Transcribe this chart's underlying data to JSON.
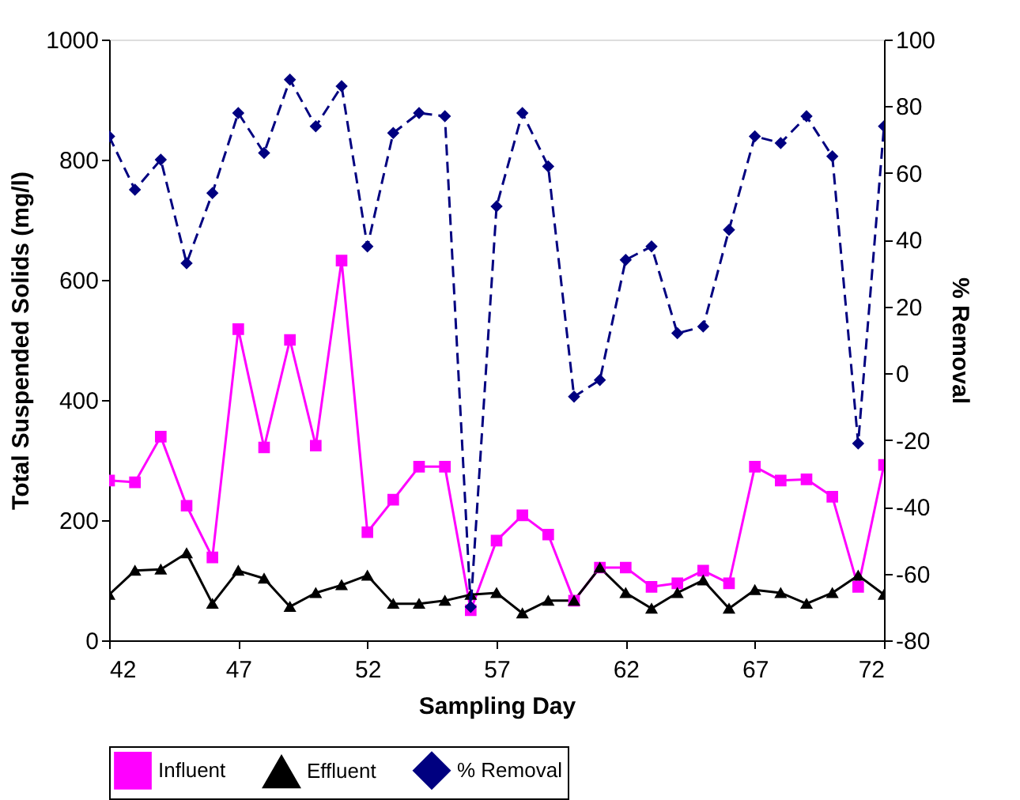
{
  "chart_data": {
    "type": "line",
    "xlabel": "Sampling Day",
    "ylabel": "Total Suspended Solids (mg/l)",
    "y2label": "% Removal",
    "x": [
      42,
      43,
      44,
      45,
      46,
      47,
      48,
      49,
      50,
      51,
      52,
      53,
      54,
      55,
      56,
      57,
      58,
      59,
      60,
      61,
      62,
      63,
      64,
      65,
      66,
      67,
      68,
      69,
      70,
      71,
      72
    ],
    "xlim": [
      42,
      72
    ],
    "xticks": [
      42,
      47,
      52,
      57,
      62,
      67,
      72
    ],
    "ylim": [
      0,
      1000
    ],
    "yticks": [
      0,
      200,
      400,
      600,
      800,
      1000
    ],
    "y2lim": [
      -80,
      100
    ],
    "y2ticks": [
      -80,
      -60,
      -40,
      -20,
      0,
      20,
      40,
      60,
      80,
      100
    ],
    "grid": false,
    "legend": "bottom",
    "series": [
      {
        "name": "Influent",
        "color": "#ff00ff",
        "marker": "square",
        "line_style": "solid",
        "values": [
          266,
          263,
          339,
          224,
          138,
          518,
          321,
          500,
          324,
          632,
          180,
          234,
          289,
          289,
          50,
          166,
          208,
          176,
          66,
          121,
          121,
          89,
          95,
          116,
          95,
          289,
          266,
          268,
          239,
          89,
          292
        ]
      },
      {
        "name": "Effluent",
        "color": "#000000",
        "marker": "triangle",
        "line_style": "solid",
        "values": [
          76,
          116,
          118,
          145,
          61,
          116,
          103,
          56,
          79,
          92,
          108,
          61,
          61,
          66,
          76,
          79,
          45,
          66,
          66,
          121,
          79,
          53,
          79,
          100,
          53,
          84,
          79,
          61,
          79,
          108,
          76
        ]
      },
      {
        "name": "% Removal",
        "color": "#000080",
        "marker": "diamond",
        "line_style": "dashed",
        "axis": "y2",
        "values": [
          71,
          55,
          64,
          33,
          54,
          78,
          66,
          88,
          74,
          86,
          38,
          72,
          78,
          77,
          -70,
          50,
          78,
          62,
          -7,
          -2,
          34,
          38,
          12,
          14,
          43,
          71,
          69,
          77,
          65,
          -21,
          74
        ]
      }
    ]
  }
}
